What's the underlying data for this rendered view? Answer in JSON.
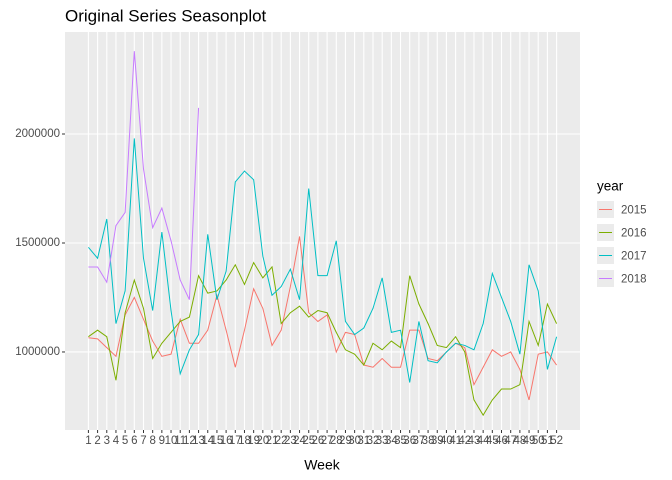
{
  "chart_data": {
    "type": "line",
    "title": "Original Series Seasonplot",
    "x_label": "Week",
    "legend_title": "year",
    "x": [
      1,
      2,
      3,
      4,
      5,
      6,
      7,
      8,
      9,
      10,
      11,
      12,
      13,
      14,
      15,
      16,
      17,
      18,
      19,
      20,
      21,
      22,
      23,
      24,
      25,
      26,
      27,
      28,
      29,
      30,
      31,
      32,
      33,
      34,
      35,
      36,
      37,
      38,
      39,
      40,
      41,
      42,
      43,
      44,
      45,
      46,
      47,
      48,
      49,
      50,
      51,
      52
    ],
    "xlim": [
      -1.55,
      54.55
    ],
    "xticks": [
      1,
      2,
      3,
      4,
      5,
      6,
      7,
      8,
      9,
      10,
      11,
      12,
      13,
      14,
      15,
      16,
      17,
      18,
      19,
      20,
      21,
      22,
      23,
      24,
      25,
      26,
      27,
      28,
      29,
      30,
      31,
      32,
      33,
      34,
      35,
      36,
      37,
      38,
      39,
      40,
      41,
      42,
      43,
      44,
      45,
      46,
      47,
      48,
      49,
      50,
      51,
      52
    ],
    "ylim": [
      642000,
      2468000
    ],
    "yticks": [
      1000000,
      1500000,
      2000000
    ],
    "grid": true,
    "legend": "right",
    "series": [
      {
        "name": "2015",
        "color": "#F8766D",
        "values": [
          1065000,
          1060000,
          1020000,
          980000,
          1170000,
          1250000,
          1150000,
          1050000,
          980000,
          990000,
          1150000,
          1040000,
          1040000,
          1100000,
          1260000,
          1100000,
          930000,
          1100000,
          1290000,
          1200000,
          1030000,
          1100000,
          1300000,
          1530000,
          1180000,
          1140000,
          1170000,
          1000000,
          1090000,
          1080000,
          940000,
          930000,
          970000,
          930000,
          930000,
          1100000,
          1100000,
          970000,
          960000,
          1000000,
          1040000,
          1020000,
          850000,
          930000,
          1010000,
          980000,
          1000000,
          920000,
          780000,
          990000,
          1000000,
          940000
        ]
      },
      {
        "name": "2016",
        "color": "#7CAE00",
        "values": [
          1070000,
          1100000,
          1070000,
          870000,
          1180000,
          1330000,
          1200000,
          970000,
          1040000,
          1090000,
          1140000,
          1160000,
          1350000,
          1270000,
          1280000,
          1330000,
          1400000,
          1310000,
          1410000,
          1340000,
          1390000,
          1130000,
          1180000,
          1210000,
          1160000,
          1190000,
          1180000,
          1090000,
          1010000,
          990000,
          940000,
          1040000,
          1010000,
          1050000,
          1020000,
          1350000,
          1220000,
          1130000,
          1030000,
          1020000,
          1070000,
          1000000,
          780000,
          710000,
          780000,
          830000,
          830000,
          850000,
          1140000,
          1030000,
          1220000,
          1130000
        ]
      },
      {
        "name": "2017",
        "color": "#00BFC4",
        "values": [
          1480000,
          1430000,
          1610000,
          1130000,
          1280000,
          1980000,
          1430000,
          1190000,
          1550000,
          1190000,
          900000,
          1010000,
          1080000,
          1540000,
          1240000,
          1370000,
          1780000,
          1830000,
          1790000,
          1440000,
          1260000,
          1300000,
          1380000,
          1240000,
          1750000,
          1350000,
          1350000,
          1510000,
          1140000,
          1080000,
          1110000,
          1200000,
          1340000,
          1090000,
          1100000,
          860000,
          1140000,
          960000,
          950000,
          1000000,
          1040000,
          1030000,
          1010000,
          1130000,
          1360000,
          1250000,
          1140000,
          990000,
          1400000,
          1280000,
          920000,
          1070000
        ]
      },
      {
        "name": "2018",
        "color": "#C77CFF",
        "values": [
          1390000,
          1390000,
          1320000,
          1580000,
          1640000,
          2380000,
          1840000,
          1570000,
          1660000,
          1510000,
          1330000,
          1240000,
          2120000,
          null,
          null,
          null,
          null,
          null,
          null,
          null,
          null,
          null,
          null,
          null,
          null,
          null,
          null,
          null,
          null,
          null,
          null,
          null,
          null,
          null,
          null,
          null,
          null,
          null,
          null,
          null,
          null,
          null,
          null,
          null,
          null,
          null,
          null,
          null,
          null,
          null,
          null,
          null
        ]
      }
    ]
  }
}
